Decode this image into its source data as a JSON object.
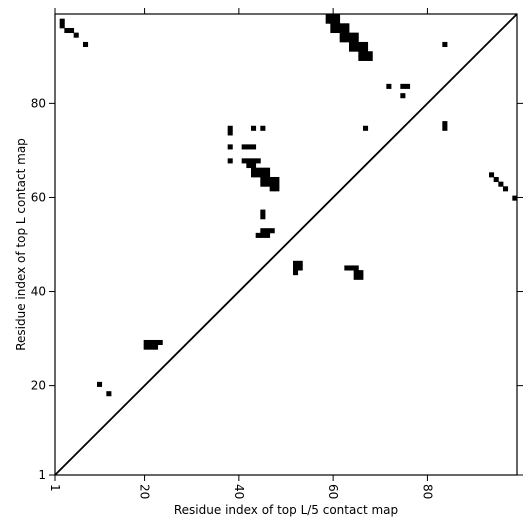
{
  "chart_data": {
    "type": "heatmap",
    "title": "",
    "xlabel": "Residue index of top L/5 contact map",
    "ylabel": "Residue index of top L contact map",
    "xlim": [
      1,
      99
    ],
    "ylim": [
      1,
      99
    ],
    "xticks": [
      1,
      20,
      40,
      60,
      80
    ],
    "yticks": [
      1,
      20,
      40,
      60,
      80
    ],
    "x_tick_labels_rotated": true,
    "diagonal_line": true,
    "grid": false,
    "colors": {
      "cell": "#000000",
      "background": "#ffffff",
      "frame": "#000000"
    },
    "contacts": [
      [
        2,
        98
      ],
      [
        2,
        97
      ],
      [
        3,
        96
      ],
      [
        4,
        96
      ],
      [
        5,
        95
      ],
      [
        7,
        93
      ],
      [
        10,
        20
      ],
      [
        12,
        18
      ],
      [
        20,
        29
      ],
      [
        21,
        29
      ],
      [
        22,
        29
      ],
      [
        23,
        29
      ],
      [
        20,
        28
      ],
      [
        21,
        28
      ],
      [
        22,
        28
      ],
      [
        38,
        75
      ],
      [
        38,
        74
      ],
      [
        38,
        71
      ],
      [
        38,
        68
      ],
      [
        43,
        75
      ],
      [
        45,
        75
      ],
      [
        41,
        71
      ],
      [
        42,
        71
      ],
      [
        43,
        71
      ],
      [
        41,
        68
      ],
      [
        42,
        68
      ],
      [
        43,
        68
      ],
      [
        44,
        68
      ],
      [
        42,
        67
      ],
      [
        43,
        67
      ],
      [
        43,
        66
      ],
      [
        44,
        66
      ],
      [
        45,
        66
      ],
      [
        46,
        66
      ],
      [
        43,
        65
      ],
      [
        44,
        65
      ],
      [
        45,
        65
      ],
      [
        46,
        65
      ],
      [
        45,
        64
      ],
      [
        46,
        64
      ],
      [
        47,
        64
      ],
      [
        48,
        64
      ],
      [
        45,
        63
      ],
      [
        46,
        63
      ],
      [
        47,
        63
      ],
      [
        48,
        63
      ],
      [
        47,
        62
      ],
      [
        48,
        62
      ],
      [
        45,
        57
      ],
      [
        45,
        56
      ],
      [
        45,
        53
      ],
      [
        46,
        53
      ],
      [
        47,
        53
      ],
      [
        44,
        52
      ],
      [
        45,
        52
      ],
      [
        46,
        52
      ],
      [
        52,
        46
      ],
      [
        53,
        46
      ],
      [
        52,
        45
      ],
      [
        53,
        45
      ],
      [
        52,
        44
      ],
      [
        63,
        45
      ],
      [
        64,
        45
      ],
      [
        65,
        45
      ],
      [
        65,
        44
      ],
      [
        66,
        44
      ],
      [
        65,
        43
      ],
      [
        66,
        43
      ],
      [
        59,
        99
      ],
      [
        60,
        99
      ],
      [
        61,
        99
      ],
      [
        59,
        98
      ],
      [
        60,
        98
      ],
      [
        61,
        98
      ],
      [
        60,
        97
      ],
      [
        61,
        97
      ],
      [
        62,
        97
      ],
      [
        63,
        97
      ],
      [
        60,
        96
      ],
      [
        61,
        96
      ],
      [
        62,
        96
      ],
      [
        63,
        96
      ],
      [
        62,
        95
      ],
      [
        63,
        95
      ],
      [
        64,
        95
      ],
      [
        65,
        95
      ],
      [
        62,
        94
      ],
      [
        63,
        94
      ],
      [
        64,
        94
      ],
      [
        65,
        94
      ],
      [
        64,
        93
      ],
      [
        65,
        93
      ],
      [
        66,
        93
      ],
      [
        67,
        93
      ],
      [
        64,
        92
      ],
      [
        65,
        92
      ],
      [
        66,
        92
      ],
      [
        67,
        92
      ],
      [
        66,
        91
      ],
      [
        67,
        91
      ],
      [
        68,
        91
      ],
      [
        66,
        90
      ],
      [
        67,
        90
      ],
      [
        68,
        90
      ],
      [
        84,
        93
      ],
      [
        72,
        84
      ],
      [
        75,
        84
      ],
      [
        76,
        84
      ],
      [
        75,
        82
      ],
      [
        67,
        75
      ],
      [
        84,
        76
      ],
      [
        84,
        75
      ],
      [
        94,
        65
      ],
      [
        95,
        64
      ],
      [
        96,
        63
      ],
      [
        97,
        62
      ],
      [
        99,
        60
      ]
    ]
  }
}
